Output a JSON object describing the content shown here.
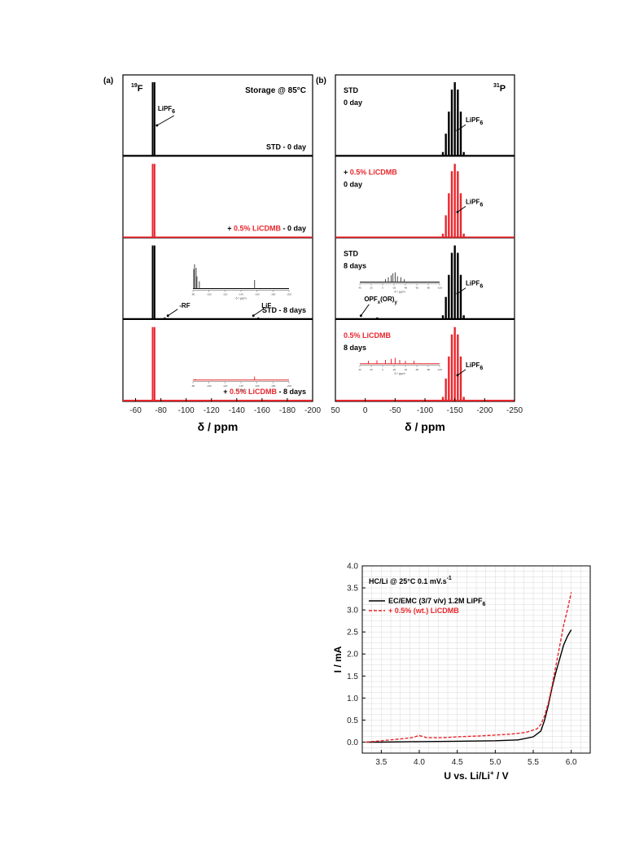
{
  "chart_data": [
    {
      "type": "line",
      "panel_label": "(a)",
      "nucleus": "19F",
      "xlabel": "δ / ppm",
      "xlim": [
        -50,
        -200
      ],
      "xticks": [
        -60,
        -80,
        -100,
        -120,
        -140,
        -160,
        -180,
        -200
      ],
      "annotation": "Storage @ 85°C",
      "subplots": [
        {
          "label": "STD - 0 day",
          "color": "#000000",
          "peaks": [
            {
              "x": -73.5,
              "h": 1.0
            },
            {
              "x": -75.0,
              "h": 1.0
            }
          ],
          "peak_annotations": [
            {
              "text": "LiPF6",
              "x": -75
            }
          ]
        },
        {
          "label": "+ 0.5% LiCDMB - 0 day",
          "label_parts": [
            "+ ",
            "0.5% LiCDMB",
            " - 0 day"
          ],
          "color": "#e8262c",
          "peaks": [
            {
              "x": -73.5,
              "h": 1.0
            },
            {
              "x": -75.0,
              "h": 1.0
            }
          ]
        },
        {
          "label": "STD - 8 days",
          "color": "#000000",
          "peaks": [
            {
              "x": -73.5,
              "h": 1.0
            },
            {
              "x": -75.0,
              "h": 1.0
            },
            {
              "x": -83,
              "h": 0.02
            },
            {
              "x": -157,
              "h": 0.02
            }
          ],
          "peak_annotations": [
            {
              "text": "-RF",
              "x": -83
            },
            {
              "text": "LiF",
              "x": -157
            }
          ],
          "inset": {
            "xlabel": "δ / ppm",
            "xticks": [
              -80,
              -100,
              -120,
              -140,
              -160,
              -180,
              -200
            ],
            "peaks": [
              {
                "x": -81,
                "h": 0.8
              },
              {
                "x": -82,
                "h": 1.0
              },
              {
                "x": -84,
                "h": 0.85
              },
              {
                "x": -85,
                "h": 0.5
              },
              {
                "x": -88,
                "h": 0.3
              },
              {
                "x": -157,
                "h": 0.35
              }
            ]
          }
        },
        {
          "label": "+ 0.5% LiCDMB - 8 days",
          "label_parts": [
            "+ ",
            "0.5% LiCDMB",
            " - 8 days"
          ],
          "color": "#e8262c",
          "peaks": [
            {
              "x": -73.5,
              "h": 1.0
            },
            {
              "x": -75.0,
              "h": 1.0
            }
          ],
          "inset": {
            "xlabel": "δ / ppm",
            "xticks": [
              -80,
              -100,
              -120,
              -140,
              -160,
              -180,
              -200
            ],
            "peaks": [
              {
                "x": -83,
                "h": 0.1
              },
              {
                "x": -157,
                "h": 0.35
              }
            ]
          }
        }
      ]
    },
    {
      "type": "line",
      "panel_label": "(b)",
      "nucleus": "31P",
      "xlabel": "δ / ppm",
      "xlim": [
        50,
        -250
      ],
      "xticks": [
        50,
        0,
        -50,
        -100,
        -150,
        -200,
        -250
      ],
      "subplots": [
        {
          "label": "STD 0 day",
          "color": "#000000",
          "peaks": [
            {
              "x": -130,
              "h": 0.05
            },
            {
              "x": -135,
              "h": 0.3
            },
            {
              "x": -140,
              "h": 0.6
            },
            {
              "x": -145,
              "h": 0.9
            },
            {
              "x": -150,
              "h": 1.0
            },
            {
              "x": -155,
              "h": 0.9
            },
            {
              "x": -160,
              "h": 0.6
            },
            {
              "x": -165,
              "h": 0.05
            }
          ],
          "peak_annotations": [
            {
              "text": "LiPF6",
              "x": -160
            }
          ]
        },
        {
          "label": "+ 0.5% LiCDMB 0 day",
          "label_parts": [
            "+ ",
            "0.5% LiCDMB",
            "0 day"
          ],
          "color": "#e8262c",
          "peaks": [
            {
              "x": -130,
              "h": 0.05
            },
            {
              "x": -135,
              "h": 0.3
            },
            {
              "x": -140,
              "h": 0.6
            },
            {
              "x": -145,
              "h": 0.9
            },
            {
              "x": -150,
              "h": 1.0
            },
            {
              "x": -155,
              "h": 0.9
            },
            {
              "x": -160,
              "h": 0.6
            },
            {
              "x": -165,
              "h": 0.05
            }
          ],
          "peak_annotations": [
            {
              "text": "LiPF6",
              "x": -160
            }
          ]
        },
        {
          "label": "STD 8 days",
          "color": "#000000",
          "peaks": [
            {
              "x": -130,
              "h": 0.05
            },
            {
              "x": -135,
              "h": 0.3
            },
            {
              "x": -140,
              "h": 0.6
            },
            {
              "x": -145,
              "h": 0.9
            },
            {
              "x": -150,
              "h": 1.0
            },
            {
              "x": -155,
              "h": 0.9
            },
            {
              "x": -160,
              "h": 0.6
            },
            {
              "x": -165,
              "h": 0.05
            },
            {
              "x": -20,
              "h": 0.02
            }
          ],
          "peak_annotations": [
            {
              "text": "LiPF6",
              "x": -160
            },
            {
              "text": "OPFx(OR)y",
              "x": -20
            }
          ],
          "inset": {
            "xlabel": "δ / ppm",
            "xticks": [
              40,
              20,
              0,
              -20,
              -40,
              -60,
              -80,
              -100
            ],
            "peaks": [
              {
                "x": -5,
                "h": 0.3
              },
              {
                "x": -10,
                "h": 0.5
              },
              {
                "x": -15,
                "h": 0.7
              },
              {
                "x": -18,
                "h": 0.9
              },
              {
                "x": -22,
                "h": 1.0
              },
              {
                "x": -26,
                "h": 0.6
              },
              {
                "x": -32,
                "h": 0.5
              },
              {
                "x": -38,
                "h": 0.3
              }
            ]
          }
        },
        {
          "label": "0.5% LiCDMB 8 days",
          "color": "#e8262c",
          "peaks": [
            {
              "x": -130,
              "h": 0.05
            },
            {
              "x": -135,
              "h": 0.3
            },
            {
              "x": -140,
              "h": 0.6
            },
            {
              "x": -145,
              "h": 0.9
            },
            {
              "x": -150,
              "h": 1.0
            },
            {
              "x": -155,
              "h": 0.9
            },
            {
              "x": -160,
              "h": 0.6
            },
            {
              "x": -165,
              "h": 0.05
            }
          ],
          "peak_annotations": [
            {
              "text": "LiPF6",
              "x": -160
            }
          ],
          "inset": {
            "xlabel": "δ / ppm",
            "xticks": [
              40,
              20,
              0,
              -20,
              -40,
              -60,
              -80,
              -100
            ],
            "peaks": [
              {
                "x": 25,
                "h": 0.3
              },
              {
                "x": 10,
                "h": 0.35
              },
              {
                "x": -5,
                "h": 0.4
              },
              {
                "x": -15,
                "h": 0.5
              },
              {
                "x": -22,
                "h": 0.6
              },
              {
                "x": -30,
                "h": 0.4
              },
              {
                "x": -40,
                "h": 0.3
              },
              {
                "x": -55,
                "h": 0.3
              }
            ]
          }
        }
      ]
    },
    {
      "type": "line",
      "title": "HC/Li @ 25°C 0.1 mV.s-1",
      "xlabel": "U vs. Li/Li+ / V",
      "ylabel": "I / mA",
      "xlim": [
        3.25,
        6.25
      ],
      "ylim": [
        -0.25,
        4.0
      ],
      "xticks": [
        3.5,
        4.0,
        4.5,
        5.0,
        5.5,
        6.0
      ],
      "yticks": [
        0.0,
        0.5,
        1.0,
        1.5,
        2.0,
        2.5,
        3.0,
        3.5,
        4.0
      ],
      "grid": true,
      "legend": "top-left",
      "series": [
        {
          "name": "EC/EMC (3/7 v/v) 1.2M LiPF6",
          "color": "#000000",
          "dash": "solid",
          "x": [
            3.3,
            3.5,
            4.0,
            4.5,
            5.0,
            5.3,
            5.5,
            5.6,
            5.65,
            5.7,
            5.75,
            5.8,
            5.85,
            5.9,
            5.95,
            6.0
          ],
          "y": [
            0.0,
            0.0,
            0.01,
            0.02,
            0.03,
            0.05,
            0.12,
            0.25,
            0.5,
            0.85,
            1.25,
            1.6,
            1.9,
            2.2,
            2.4,
            2.55
          ]
        },
        {
          "name": "+ 0.5% (wt.) LiCDMB",
          "color": "#e8262c",
          "dash": "dashed",
          "x": [
            3.3,
            3.5,
            3.8,
            3.9,
            4.0,
            4.1,
            4.3,
            4.5,
            4.8,
            5.0,
            5.2,
            5.4,
            5.55,
            5.6,
            5.65,
            5.7,
            5.75,
            5.8,
            5.85,
            5.9,
            5.95,
            6.0
          ],
          "y": [
            0.0,
            0.03,
            0.08,
            0.1,
            0.15,
            0.1,
            0.1,
            0.12,
            0.14,
            0.16,
            0.18,
            0.22,
            0.3,
            0.4,
            0.6,
            0.9,
            1.3,
            1.75,
            2.2,
            2.65,
            3.0,
            3.4
          ]
        }
      ]
    }
  ]
}
